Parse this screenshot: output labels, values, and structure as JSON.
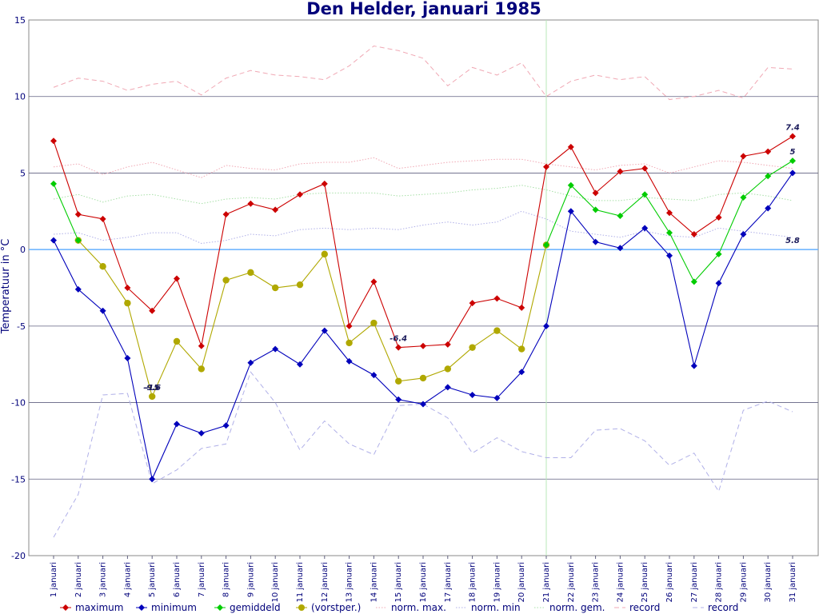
{
  "chart_data": {
    "type": "line",
    "title": "Den Helder, januari 1985",
    "ylabel": "Temperatuur in °C",
    "xlabel": "",
    "ylim": [
      -20,
      15
    ],
    "yticks": [
      15,
      10,
      5,
      0,
      -5,
      -10,
      -15,
      -20
    ],
    "grid": true,
    "legend_position": "bottom",
    "categories": [
      "1 januari",
      "2 januari",
      "3 januari",
      "4 januari",
      "5 januari",
      "6 januari",
      "7 januari",
      "8 januari",
      "9 januari",
      "10 januari",
      "11 januari",
      "12 januari",
      "13 januari",
      "14 januari",
      "15 januari",
      "16 januari",
      "17 januari",
      "18 januari",
      "19 januari",
      "20 januari",
      "21 januari",
      "22 januari",
      "23 januari",
      "24 januari",
      "25 januari",
      "26 januari",
      "27 januari",
      "28 januari",
      "29 januari",
      "30 januari",
      "31 januari"
    ],
    "series": [
      {
        "name": "maximum",
        "color": "#cc0000",
        "style": "solid",
        "marker": "diamond",
        "values": [
          7.1,
          2.3,
          2.0,
          -2.5,
          -4.0,
          -1.9,
          -6.3,
          2.3,
          3.0,
          2.6,
          3.6,
          4.3,
          -5.0,
          -2.1,
          -6.4,
          -6.3,
          -6.2,
          -3.5,
          -3.2,
          -3.8,
          5.4,
          6.7,
          3.7,
          5.1,
          5.3,
          2.4,
          1.0,
          2.1,
          6.1,
          6.4,
          7.4
        ]
      },
      {
        "name": "minimum",
        "color": "#0000bb",
        "style": "solid",
        "marker": "diamond",
        "values": [
          0.6,
          -2.6,
          -4.0,
          -7.1,
          -15.0,
          -11.4,
          -12.0,
          -11.5,
          -7.4,
          -6.5,
          -7.5,
          -5.3,
          -7.3,
          -8.2,
          -9.8,
          -10.1,
          -9.0,
          -9.5,
          -9.7,
          -8.0,
          -5.0,
          2.5,
          0.5,
          0.1,
          1.4,
          -0.4,
          -7.6,
          -2.2,
          1.0,
          2.7,
          5.0
        ]
      },
      {
        "name": "gemiddeld",
        "color": "#00cc00",
        "style": "solid",
        "marker": "diamond",
        "values": [
          4.3,
          0.6,
          null,
          null,
          null,
          null,
          null,
          null,
          null,
          null,
          null,
          null,
          null,
          null,
          null,
          null,
          null,
          null,
          null,
          null,
          0.3,
          4.2,
          2.6,
          2.2,
          3.6,
          1.1,
          -2.1,
          -0.3,
          3.4,
          4.8,
          5.8
        ]
      },
      {
        "name": "(vorstper.)",
        "color": "#b0a800",
        "style": "solid",
        "marker": "circle",
        "values": [
          null,
          0.6,
          -1.1,
          -3.5,
          -9.6,
          -6.0,
          -7.8,
          -2.0,
          -1.5,
          -2.5,
          -2.3,
          -0.3,
          -6.1,
          -4.8,
          -8.6,
          -8.4,
          -7.8,
          -6.4,
          -5.3,
          -6.5,
          0.3,
          null,
          null,
          null,
          null,
          null,
          null,
          null,
          null,
          null,
          null
        ]
      },
      {
        "name": "norm. max.",
        "color": "#f0a8b4",
        "style": "dotted",
        "marker": "none",
        "values": [
          5.4,
          5.6,
          4.9,
          5.4,
          5.7,
          5.2,
          4.7,
          5.5,
          5.3,
          5.2,
          5.6,
          5.7,
          5.7,
          6.0,
          5.3,
          5.5,
          5.7,
          5.8,
          5.9,
          5.9,
          5.6,
          5.4,
          5.2,
          5.5,
          5.6,
          5.0,
          5.4,
          5.8,
          5.7,
          5.5,
          5.3
        ]
      },
      {
        "name": "norm. min",
        "color": "#b0b0e8",
        "style": "dotted",
        "marker": "none",
        "values": [
          1.0,
          1.1,
          0.6,
          0.8,
          1.1,
          1.1,
          0.4,
          0.6,
          1.0,
          0.9,
          1.3,
          1.4,
          1.3,
          1.4,
          1.3,
          1.6,
          1.8,
          1.6,
          1.8,
          2.5,
          2.0,
          1.2,
          1.0,
          0.8,
          1.2,
          0.9,
          0.8,
          1.4,
          1.2,
          1.0,
          0.8
        ]
      },
      {
        "name": "norm. gem.",
        "color": "#a8e0a8",
        "style": "dotted",
        "marker": "none",
        "values": [
          3.3,
          3.6,
          3.1,
          3.5,
          3.6,
          3.3,
          3.0,
          3.3,
          3.4,
          3.3,
          3.6,
          3.7,
          3.7,
          3.7,
          3.5,
          3.6,
          3.7,
          3.9,
          4.0,
          4.2,
          3.9,
          3.5,
          3.2,
          3.2,
          3.4,
          3.3,
          3.2,
          3.6,
          3.7,
          3.5,
          3.2
        ]
      },
      {
        "name": "record",
        "color": "#f0a8b4",
        "style": "dashed",
        "marker": "none",
        "values": [
          10.6,
          11.2,
          11.0,
          10.4,
          10.8,
          11.0,
          10.1,
          11.2,
          11.7,
          11.4,
          11.3,
          11.1,
          12.0,
          13.3,
          13.0,
          12.5,
          10.7,
          11.9,
          11.4,
          12.2,
          10.0,
          11.0,
          11.4,
          11.1,
          11.3,
          9.8,
          10.0,
          10.4,
          9.9,
          11.9,
          11.8
        ]
      },
      {
        "name": "record",
        "color": "#b0b0e8",
        "style": "dashed",
        "marker": "none",
        "values": [
          -18.8,
          -16.0,
          -9.5,
          -9.4,
          -15.3,
          -14.4,
          -13.0,
          -12.7,
          -8.0,
          -10.0,
          -13.1,
          -11.2,
          -12.7,
          -13.4,
          -10.2,
          -10.1,
          -11.0,
          -13.3,
          -12.3,
          -13.2,
          -13.6,
          -13.6,
          -11.8,
          -11.7,
          -12.5,
          -14.1,
          -13.3,
          -15.8,
          -10.5,
          -9.9,
          -10.6
        ]
      }
    ],
    "annotations": [
      {
        "text": "7.4",
        "x": "31 januari",
        "y": 7.4
      },
      {
        "text": "5",
        "x": "31 januari",
        "y": 5.8
      },
      {
        "text": "5.8",
        "x": "31 januari",
        "y": 0.0
      },
      {
        "text": "-6.4",
        "x": "15 januari",
        "y": -6.4
      },
      {
        "text": "-9.6",
        "x": "5 januari",
        "y": -9.6
      },
      {
        "text": "-15",
        "x": "5 januari",
        "y": -9.6
      }
    ]
  }
}
